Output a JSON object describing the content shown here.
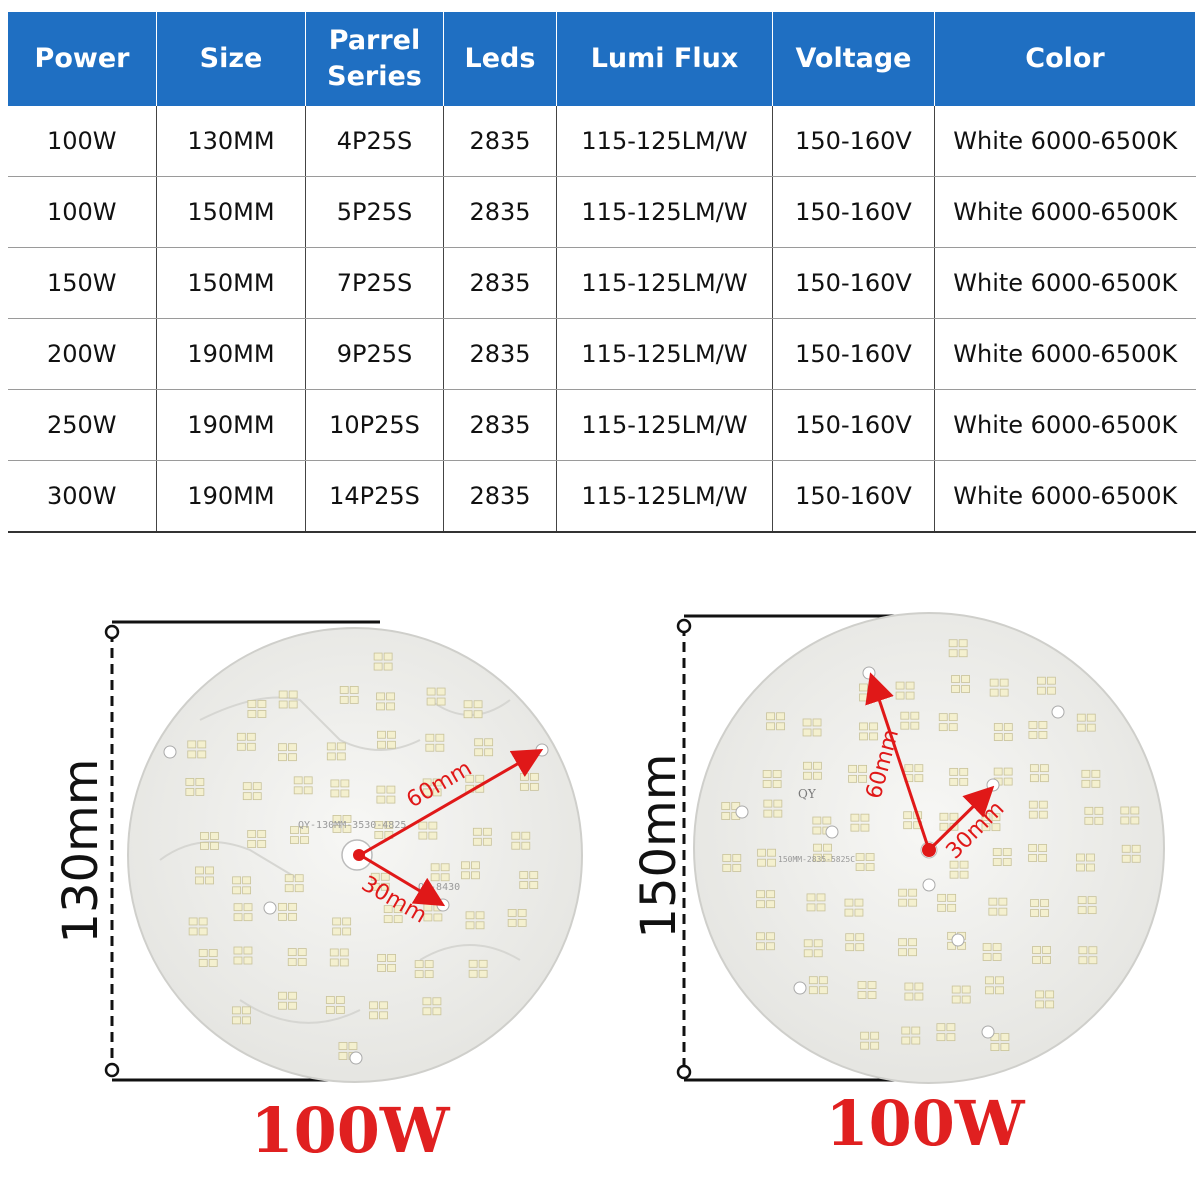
{
  "table": {
    "headers": [
      "Power",
      "Size",
      "Parrel\nSeries",
      "Leds",
      "Lumi Flux",
      "Voltage",
      "Color"
    ],
    "rows": [
      [
        "100W",
        "130MM",
        "4P25S",
        "2835",
        "115-125LM/W",
        "150-160V",
        "White 6000-6500K"
      ],
      [
        "100W",
        "150MM",
        "5P25S",
        "2835",
        "115-125LM/W",
        "150-160V",
        "White 6000-6500K"
      ],
      [
        "150W",
        "150MM",
        "7P25S",
        "2835",
        "115-125LM/W",
        "150-160V",
        "White 6000-6500K"
      ],
      [
        "200W",
        "190MM",
        "9P25S",
        "2835",
        "115-125LM/W",
        "150-160V",
        "White 6000-6500K"
      ],
      [
        "250W",
        "190MM",
        "10P25S",
        "2835",
        "115-125LM/W",
        "150-160V",
        "White 6000-6500K"
      ],
      [
        "300W",
        "190MM",
        "14P25S",
        "2835",
        "115-125LM/W",
        "150-160V",
        "White 6000-6500K"
      ]
    ]
  },
  "boards": [
    {
      "dimension": "130mm",
      "power": "100W",
      "radius_long": "60mm",
      "radius_short": "30mm",
      "pcb_text": "QY-130MM-3530-4825",
      "pcb_text_2": "QY-8430"
    },
    {
      "dimension": "150mm",
      "power": "100W",
      "radius_long": "60mm",
      "radius_short": "30mm",
      "pcb_text": "150MM-2835-5825C",
      "pcb_text_2": "QY"
    }
  ],
  "colors": {
    "header_bg": "#1f6fc2",
    "accent_red": "#e02020",
    "arrow_red": "#e01818"
  }
}
